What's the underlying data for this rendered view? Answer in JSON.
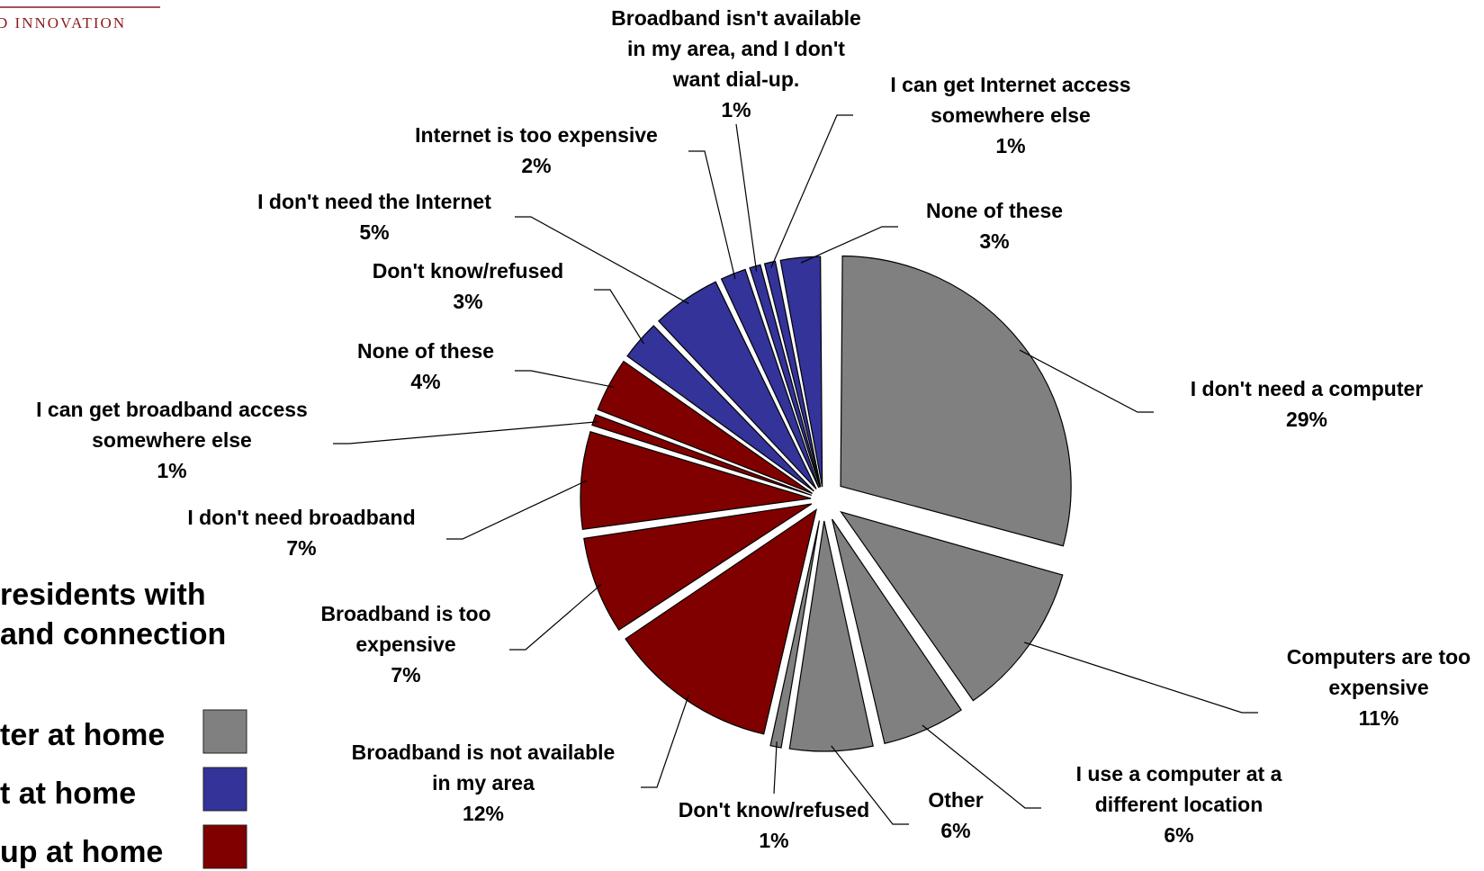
{
  "logo_text": "D INNOVATION",
  "legend": {
    "title_lines": [
      "residents with",
      "and connection"
    ],
    "items": [
      {
        "label": "ter at home",
        "color": "#808080"
      },
      {
        "label": "t at home",
        "color": "#333399"
      },
      {
        "label": "up at home",
        "color": "#800000"
      }
    ]
  },
  "chart_data": {
    "type": "pie",
    "title": "",
    "groups": [
      {
        "name": "ter at home",
        "color": "#808080"
      },
      {
        "name": "t at home",
        "color": "#333399"
      },
      {
        "name": "up at home",
        "color": "#800000"
      }
    ],
    "slices": [
      {
        "label_lines": [
          "I don't need a computer"
        ],
        "value": 29,
        "value_label": "29%",
        "group": 0
      },
      {
        "label_lines": [
          "Computers are too",
          "expensive"
        ],
        "value": 11,
        "value_label": "11%",
        "group": 0
      },
      {
        "label_lines": [
          "I use a computer at a",
          "different location"
        ],
        "value": 6,
        "value_label": "6%",
        "group": 0
      },
      {
        "label_lines": [
          "Other"
        ],
        "value": 6,
        "value_label": "6%",
        "group": 0
      },
      {
        "label_lines": [
          "Don't know/refused"
        ],
        "value": 1,
        "value_label": "1%",
        "group": 0
      },
      {
        "label_lines": [
          "Broadband is not available",
          "in my area"
        ],
        "value": 12,
        "value_label": "12%",
        "group": 2
      },
      {
        "label_lines": [
          "Broadband is too",
          "expensive"
        ],
        "value": 7,
        "value_label": "7%",
        "group": 2
      },
      {
        "label_lines": [
          "I don't need broadband"
        ],
        "value": 7,
        "value_label": "7%",
        "group": 2
      },
      {
        "label_lines": [
          "I can get broadband access",
          "somewhere else"
        ],
        "value": 1,
        "value_label": "1%",
        "group": 2
      },
      {
        "label_lines": [
          "None of these"
        ],
        "value": 4,
        "value_label": "4%",
        "group": 2
      },
      {
        "label_lines": [
          "Don't know/refused"
        ],
        "value": 3,
        "value_label": "3%",
        "group": 1
      },
      {
        "label_lines": [
          "I don't need the Internet"
        ],
        "value": 5,
        "value_label": "5%",
        "group": 1
      },
      {
        "label_lines": [
          "Internet is too expensive"
        ],
        "value": 2,
        "value_label": "2%",
        "group": 1
      },
      {
        "label_lines": [
          "Broadband isn't available",
          "in my area, and I don't",
          "want dial-up."
        ],
        "value": 1,
        "value_label": "1%",
        "group": 1
      },
      {
        "label_lines": [
          "I can get Internet access",
          "somewhere else"
        ],
        "value": 1,
        "value_label": "1%",
        "group": 1
      },
      {
        "label_lines": [
          "None of these"
        ],
        "value": 3,
        "value_label": "3%",
        "group": 1
      }
    ]
  }
}
